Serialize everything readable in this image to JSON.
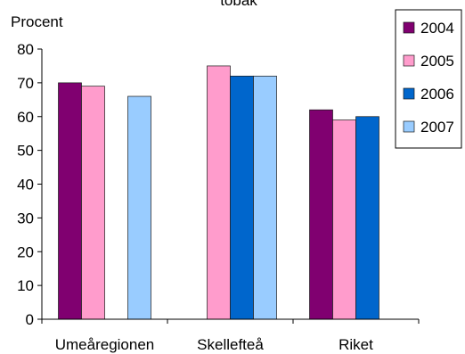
{
  "chart_data": {
    "type": "bar",
    "title": "tobak",
    "ylabel": "Procent",
    "xlabel": "",
    "categories": [
      "Umeåregionen",
      "Skellefteå",
      "Riket"
    ],
    "series": [
      {
        "name": "2004",
        "color": "#800070",
        "values": [
          70,
          null,
          62
        ]
      },
      {
        "name": "2005",
        "color": "#ff9ccc",
        "values": [
          69,
          75,
          59
        ]
      },
      {
        "name": "2006",
        "color": "#0066cc",
        "values": [
          null,
          72,
          60
        ]
      },
      {
        "name": "2007",
        "color": "#99ccff",
        "values": [
          66,
          72,
          null
        ]
      }
    ],
    "ylim": [
      0,
      80
    ],
    "yticks": [
      0,
      10,
      20,
      30,
      40,
      50,
      60,
      70,
      80
    ],
    "grid": false,
    "legend_position": "top-right"
  }
}
